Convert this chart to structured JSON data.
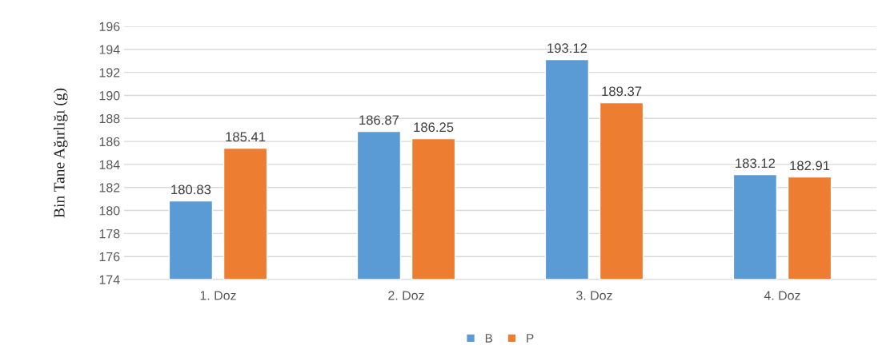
{
  "chart_data": {
    "type": "bar",
    "ylabel": "Bin Tane Ağırlığı (g)",
    "categories": [
      "1. Doz",
      "2. Doz",
      "3. Doz",
      "4. Doz"
    ],
    "series": [
      {
        "name": "B",
        "color": "#5b9bd5",
        "values": [
          180.83,
          186.87,
          193.12,
          183.12
        ]
      },
      {
        "name": "P",
        "color": "#ed7d31",
        "values": [
          185.41,
          186.25,
          189.37,
          182.91
        ]
      }
    ],
    "ylim": [
      174,
      196
    ],
    "yticks": [
      174,
      176,
      178,
      180,
      182,
      184,
      186,
      188,
      190,
      192,
      194,
      196
    ],
    "grid": "y",
    "legend": "bottom",
    "data_labels": true
  }
}
